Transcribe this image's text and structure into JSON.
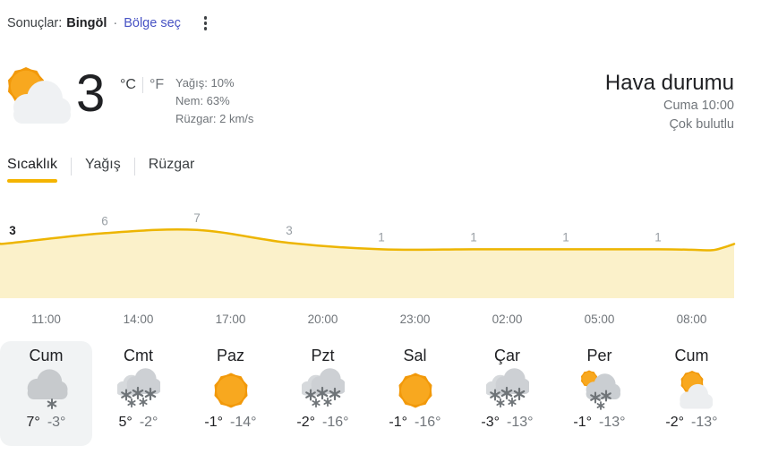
{
  "header": {
    "results_label": "Sonuçlar:",
    "location": "Bingöl",
    "dot_separator": "·",
    "region_link_label": "Bölge seç",
    "menu_icon": "kebab-menu-icon"
  },
  "current": {
    "temperature": "3",
    "unit_celsius": "°C",
    "unit_fahrenheit": "°F",
    "precipitation": "Yağış: 10%",
    "humidity": "Nem: 63%",
    "wind": "Rüzgar: 2 km/s",
    "condition_icon": "partly-cloudy-large"
  },
  "panel": {
    "title": "Hava durumu",
    "datetime": "Cuma 10:00",
    "condition": "Çok bulutlu"
  },
  "tabs": {
    "items": [
      {
        "label": "Sıcaklık",
        "active": true
      },
      {
        "label": "Yağış",
        "active": false
      },
      {
        "label": "Rüzgar",
        "active": false
      }
    ]
  },
  "chart_data": {
    "type": "area",
    "series_name": "Sıcaklık (°C)",
    "x_labels": [
      "11:00",
      "14:00",
      "17:00",
      "20:00",
      "23:00",
      "02:00",
      "05:00",
      "08:00"
    ],
    "values": [
      3,
      6,
      7,
      3,
      1,
      1,
      1,
      1
    ],
    "ylim": [
      0,
      15
    ],
    "grid": false,
    "legend": false,
    "line_color": "#edb502",
    "fill_color": "#fbf1ca",
    "label_color": "#9aa0a6",
    "first_label_color": "#202124"
  },
  "forecast": {
    "days": [
      {
        "name": "Cum",
        "icon": "light-snow",
        "high": "7°",
        "low": "-3°",
        "selected": true
      },
      {
        "name": "Cmt",
        "icon": "snow",
        "high": "5°",
        "low": "-2°",
        "selected": false
      },
      {
        "name": "Paz",
        "icon": "sunny",
        "high": "-1°",
        "low": "-14°",
        "selected": false
      },
      {
        "name": "Pzt",
        "icon": "snow",
        "high": "-2°",
        "low": "-16°",
        "selected": false
      },
      {
        "name": "Sal",
        "icon": "sunny",
        "high": "-1°",
        "low": "-16°",
        "selected": false
      },
      {
        "name": "Çar",
        "icon": "snow",
        "high": "-3°",
        "low": "-13°",
        "selected": false
      },
      {
        "name": "Per",
        "icon": "snow-showers",
        "high": "-1°",
        "low": "-13°",
        "selected": false
      },
      {
        "name": "Cum",
        "icon": "partly-cloudy",
        "high": "-2°",
        "low": "-13°",
        "selected": false
      }
    ]
  },
  "colors": {
    "accent_yellow": "#f4b400",
    "selected_day_bg": "#f1f3f4",
    "link_blue": "#4752c4",
    "text_dark": "#202124",
    "text_gray": "#70757a"
  }
}
